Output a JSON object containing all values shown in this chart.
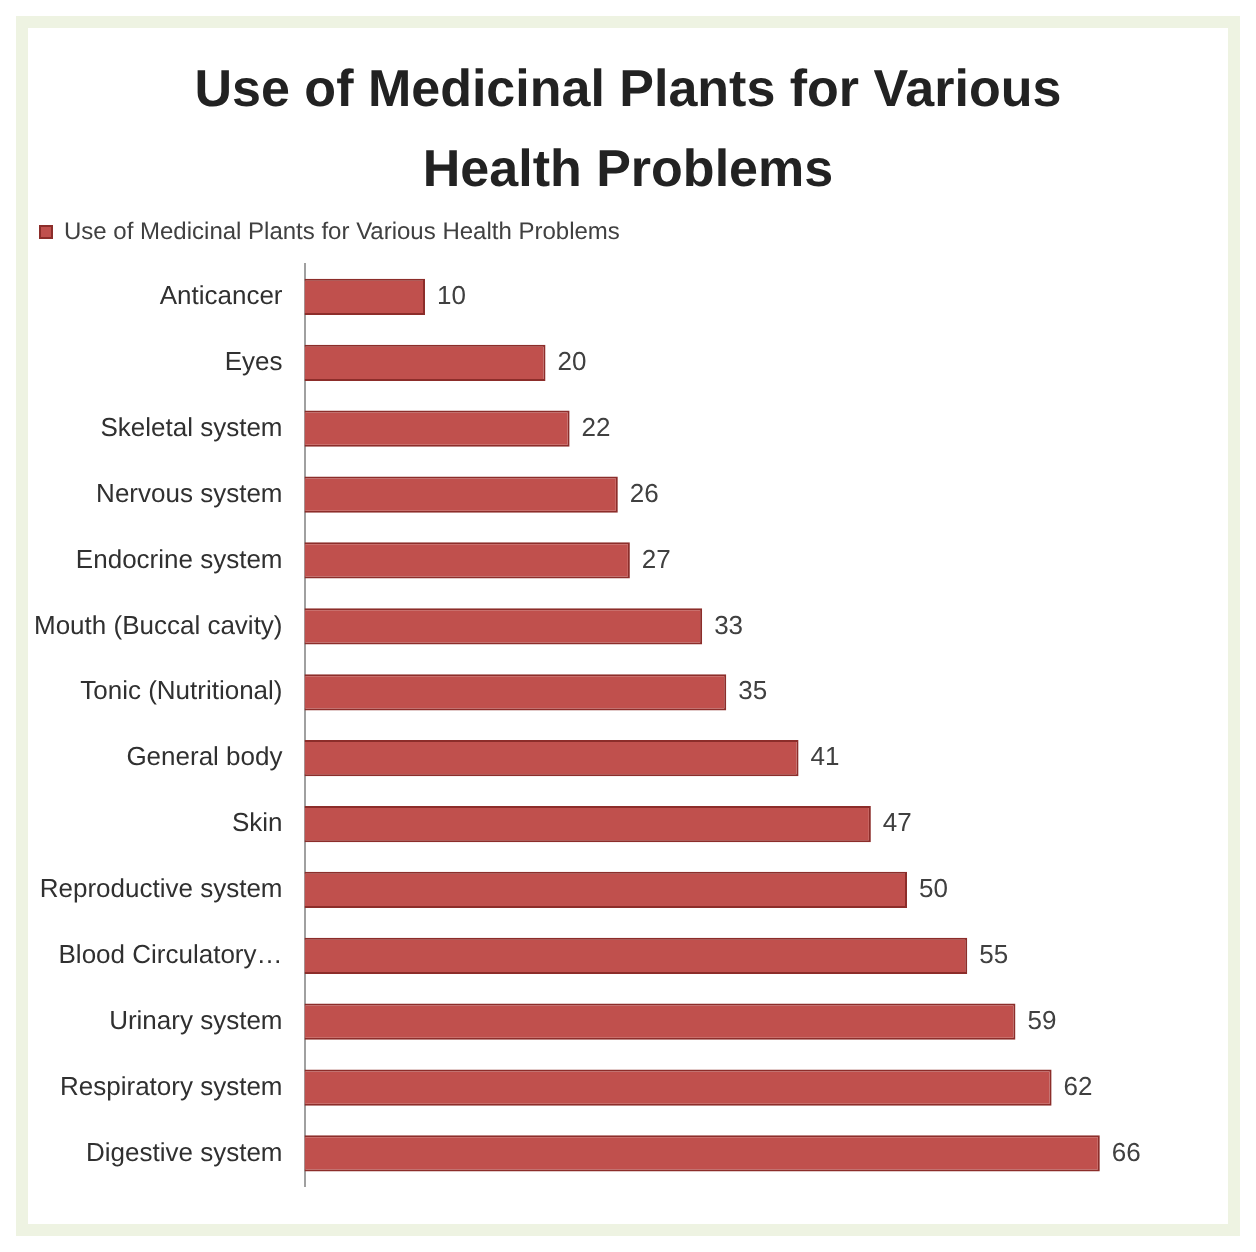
{
  "chart_data": {
    "type": "bar",
    "orientation": "horizontal",
    "title": "Use of Medicinal Plants for Various Health Problems",
    "categories": [
      "Anticancer",
      "Eyes",
      "Skeletal system",
      "Nervous system",
      "Endocrine system",
      "Mouth (Buccal cavity)",
      "Tonic (Nutritional)",
      "General body",
      "Skin",
      "Reproductive system",
      "Blood Circulatory…",
      "Urinary system",
      "Respiratory system",
      "Digestive system"
    ],
    "series": [
      {
        "name": "Use of Medicinal Plants for Various Health Problems",
        "color": "#c0504d",
        "values": [
          10,
          20,
          22,
          26,
          27,
          33,
          35,
          41,
          47,
          50,
          55,
          59,
          62,
          66
        ]
      }
    ],
    "data_labels": true,
    "legend": "top"
  }
}
